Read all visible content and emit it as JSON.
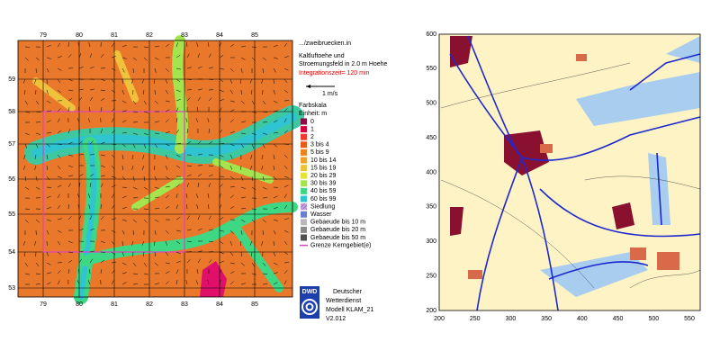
{
  "left_map": {
    "top_labels": [
      "79",
      "80",
      "81",
      "82",
      "83",
      "84",
      "85"
    ],
    "bottom_labels": [
      "79",
      "80",
      "81",
      "82",
      "83",
      "84",
      "85"
    ],
    "left_labels": [
      "59",
      "58",
      "57",
      "56",
      "55",
      "54",
      "53"
    ]
  },
  "legend": {
    "file": ".../zweibruecken.in",
    "title_lines": [
      "Kaltluftoehe und",
      "Stroemungsfeld in   2.0 m Hoehe"
    ],
    "integration": "Integrationszeit=   120 min",
    "arrow_label": "1 m/s",
    "scale_title": "Farbskala",
    "unit": "Einheit: m",
    "classes": [
      {
        "label": "0",
        "color": "#8a0a46"
      },
      {
        "label": "1",
        "color": "#d8003c"
      },
      {
        "label": "2",
        "color": "#f03a2a"
      },
      {
        "label": "3 bis 4",
        "color": "#e85a18"
      },
      {
        "label": "5 bis 9",
        "color": "#f0821e"
      },
      {
        "label": "10 bis 14",
        "color": "#f2a02c"
      },
      {
        "label": "15 bis 19",
        "color": "#f0c23c"
      },
      {
        "label": "20 bis 29",
        "color": "#e6e23c"
      },
      {
        "label": "30 bis 39",
        "color": "#a4e44e"
      },
      {
        "label": "40 bis 59",
        "color": "#3ed884"
      },
      {
        "label": "60 bis 99",
        "color": "#2ec4d2"
      },
      {
        "label": "Siedlung",
        "color": "#c9a0d8"
      },
      {
        "label": "Wasser",
        "color": "#6a86d8"
      },
      {
        "label": "Gebaeude bis 10 m",
        "color": "#b8b8b8"
      },
      {
        "label": "Gebaeude bis 20 m",
        "color": "#8a8a8a"
      },
      {
        "label": "Gebaeude bis 50 m",
        "color": "#505050"
      }
    ],
    "boundary": {
      "label": "Grenze Kerngebiet(e)",
      "color": "#e040c0"
    }
  },
  "logo": {
    "text": "DWD",
    "lines": [
      "Deutscher",
      "Wetterdienst",
      "Modell KLAM_21",
      "V2.012"
    ]
  },
  "right_map": {
    "xticks": [
      200,
      250,
      300,
      350,
      400,
      450,
      500,
      550
    ],
    "yticks": [
      200,
      250,
      300,
      350,
      400,
      450,
      500,
      550,
      600
    ]
  }
}
